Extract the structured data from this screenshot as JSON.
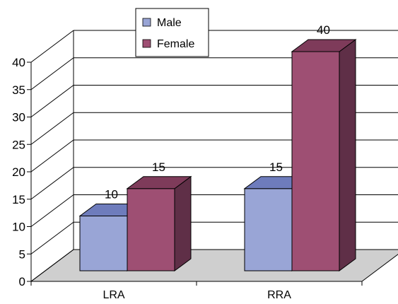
{
  "chart_data": {
    "type": "bar",
    "categories": [
      "LRA",
      "RRA"
    ],
    "series": [
      {
        "name": "Male",
        "values": [
          10,
          15
        ],
        "color": "#99a5d6",
        "side_color": "#5e6898",
        "top_color": "#6e7cbc"
      },
      {
        "name": "Female",
        "values": [
          15,
          40
        ],
        "color": "#9e4f73",
        "side_color": "#5f2f47",
        "top_color": "#7e3b5a"
      }
    ],
    "data_labels": [
      [
        "10",
        "15"
      ],
      [
        "15",
        "40"
      ]
    ],
    "ylim": [
      0,
      40
    ],
    "yticks": [
      0,
      5,
      10,
      15,
      20,
      25,
      30,
      35,
      40
    ],
    "grid": true,
    "legend": "top-center",
    "floor_color": "#cfcfcf"
  }
}
